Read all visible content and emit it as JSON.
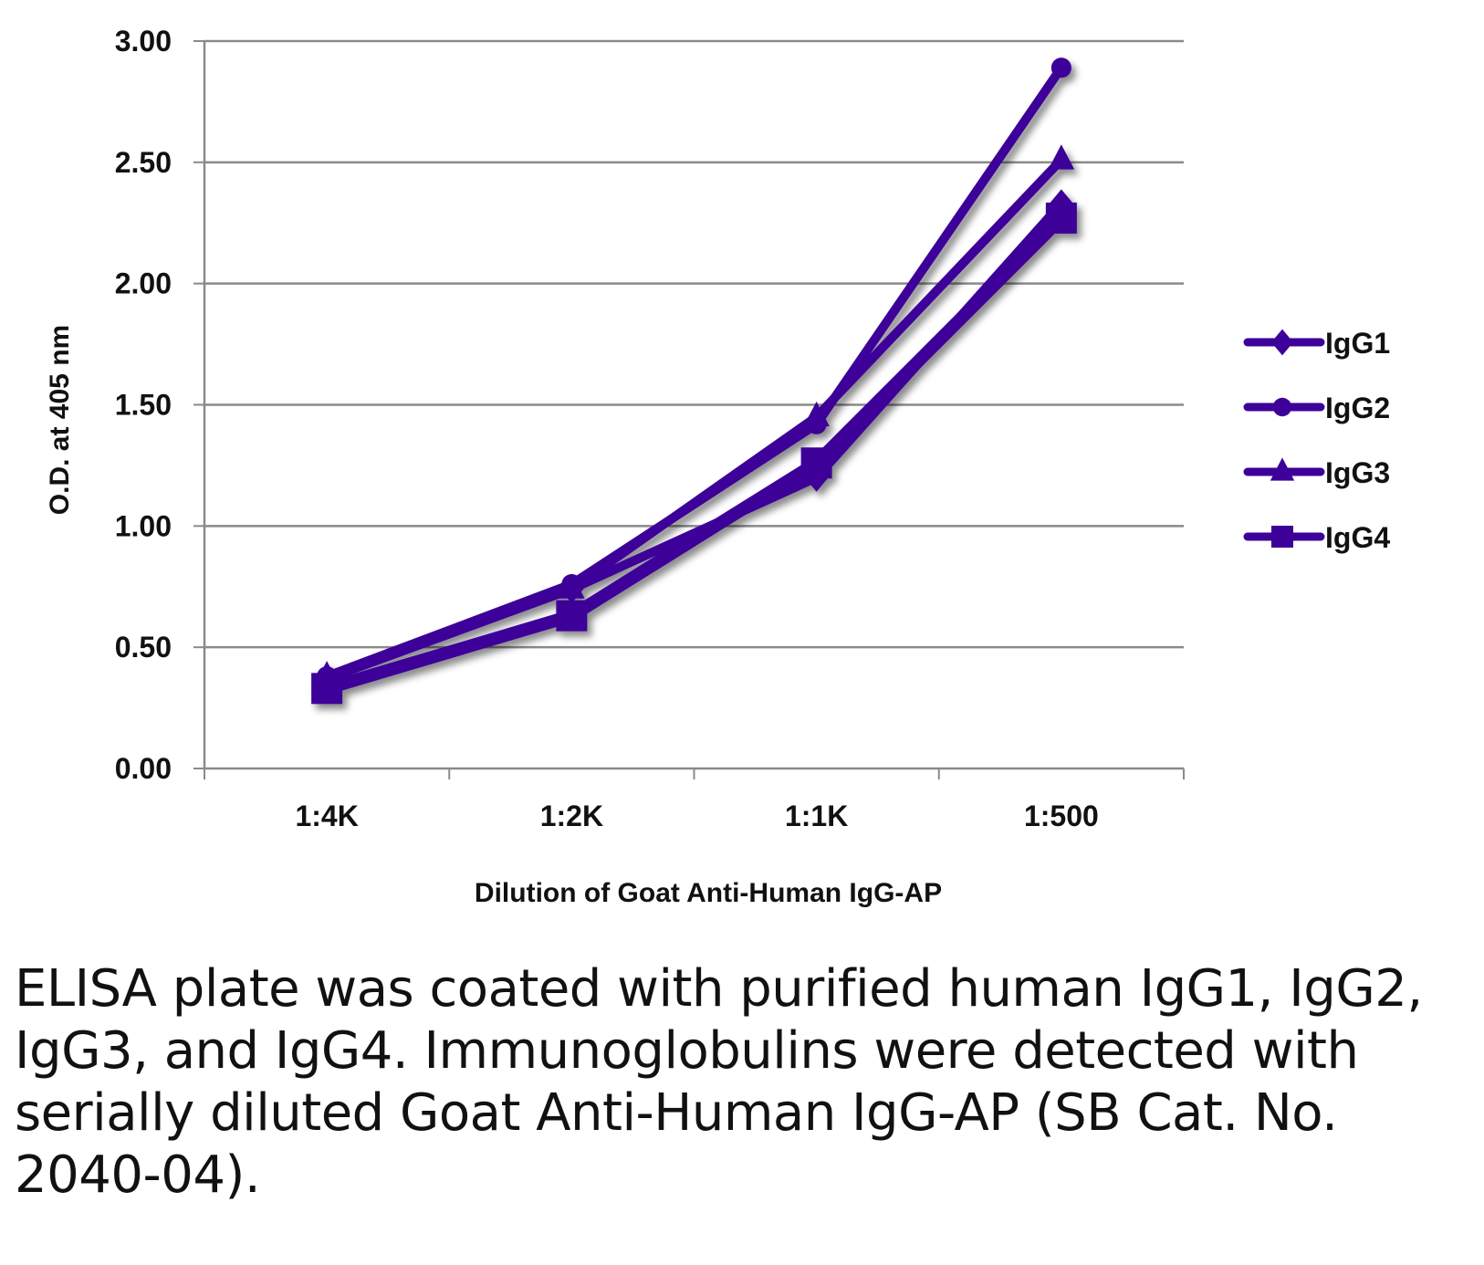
{
  "chart_data": {
    "type": "line",
    "title": "",
    "xlabel": "Dilution of Goat Anti-Human IgG-AP",
    "ylabel": "O.D. at 405 nm",
    "categories": [
      "1:4K",
      "1:2K",
      "1:1K",
      "1:500"
    ],
    "ylim": [
      0,
      3
    ],
    "yticks": [
      "0.00",
      "0.50",
      "1.00",
      "1.50",
      "2.00",
      "2.50",
      "3.00"
    ],
    "grid": true,
    "legend_position": "right",
    "series": [
      {
        "name": "IgG1",
        "marker": "diamond",
        "values": [
          0.37,
          0.74,
          1.2,
          2.33
        ]
      },
      {
        "name": "IgG2",
        "marker": "circle",
        "values": [
          0.38,
          0.76,
          1.42,
          2.89
        ]
      },
      {
        "name": "IgG3",
        "marker": "triangle",
        "values": [
          0.38,
          0.74,
          1.45,
          2.51
        ]
      },
      {
        "name": "IgG4",
        "marker": "square",
        "values": [
          0.33,
          0.63,
          1.26,
          2.27
        ]
      }
    ],
    "color": "#3d0099"
  },
  "caption": "ELISA plate was coated with purified human IgG1, IgG2, IgG3, and IgG4.  Immunoglobulins were detected with serially diluted Goat Anti-Human IgG-AP (SB Cat. No. 2040-04)."
}
